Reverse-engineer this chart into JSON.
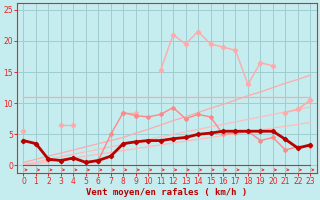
{
  "x": [
    0,
    1,
    2,
    3,
    4,
    5,
    6,
    7,
    8,
    9,
    10,
    11,
    12,
    13,
    14,
    15,
    16,
    17,
    18,
    19,
    20,
    21,
    22,
    23
  ],
  "bg_color": "#c5ecee",
  "grid_color": "#9ecdd2",
  "color_very_light": "#ffbbbb",
  "color_light_pink": "#ffaaaa",
  "color_salmon": "#ff8888",
  "color_red": "#ee2222",
  "color_dark_red": "#bb0000",
  "xlabel": "Vent moyen/en rafales ( km/h )",
  "ylim": [
    -1.2,
    26
  ],
  "xlim": [
    -0.5,
    23.5
  ],
  "yticks": [
    0,
    5,
    10,
    15,
    20,
    25
  ],
  "xticks": [
    0,
    1,
    2,
    3,
    4,
    5,
    6,
    7,
    8,
    9,
    10,
    11,
    12,
    13,
    14,
    15,
    16,
    17,
    18,
    19,
    20,
    21,
    22,
    23
  ],
  "series_horiz": [
    11.0,
    11.0,
    11.0,
    11.0,
    11.0,
    11.0,
    11.0,
    11.0,
    11.0,
    11.0,
    11.0,
    11.0,
    11.0,
    11.0,
    11.0,
    11.0,
    11.0,
    11.0,
    11.0,
    11.0,
    11.0,
    11.0,
    11.0,
    11.0
  ],
  "series_peaked": [
    5.5,
    null,
    null,
    6.5,
    6.5,
    null,
    null,
    null,
    8.5,
    8.5,
    null,
    15.3,
    21.0,
    19.5,
    21.5,
    19.5,
    19.0,
    18.5,
    13.0,
    16.5,
    16.0,
    null,
    9.0,
    10.5
  ],
  "series_peaked_right": [
    null,
    null,
    null,
    null,
    null,
    null,
    null,
    null,
    null,
    null,
    null,
    null,
    null,
    null,
    null,
    null,
    null,
    null,
    null,
    null,
    null,
    8.5,
    9.0,
    10.5
  ],
  "series_trend_upper": [
    0.5,
    1.0,
    1.5,
    2.0,
    2.5,
    3.0,
    3.5,
    4.0,
    4.5,
    5.2,
    5.8,
    6.5,
    7.2,
    7.8,
    8.5,
    9.2,
    9.8,
    10.5,
    11.2,
    11.8,
    12.5,
    13.2,
    13.8,
    14.5
  ],
  "series_trend_lower": [
    0.2,
    0.5,
    1.0,
    1.4,
    1.8,
    2.2,
    2.6,
    3.0,
    3.4,
    3.8,
    4.2,
    4.6,
    5.0,
    5.4,
    5.8,
    6.2,
    6.6,
    7.0,
    7.4,
    7.8,
    8.2,
    8.6,
    9.0,
    9.4
  ],
  "series_trend_lower2": [
    0.1,
    0.3,
    0.6,
    0.9,
    1.2,
    1.5,
    1.8,
    2.1,
    2.4,
    2.7,
    3.0,
    3.3,
    3.6,
    3.9,
    4.2,
    4.5,
    4.8,
    5.1,
    5.4,
    5.7,
    6.0,
    6.3,
    6.6,
    6.9
  ],
  "series_medium": [
    4.0,
    3.5,
    1.0,
    0.8,
    1.2,
    0.5,
    0.8,
    5.0,
    8.5,
    8.0,
    7.8,
    8.2,
    9.3,
    7.5,
    8.2,
    7.8,
    5.0,
    5.2,
    5.5,
    4.0,
    4.5,
    2.5,
    3.0,
    3.2
  ],
  "series_dark": [
    4.0,
    3.5,
    1.0,
    0.8,
    1.2,
    0.5,
    0.8,
    1.5,
    3.5,
    3.8,
    4.0,
    4.0,
    4.3,
    4.5,
    5.0,
    5.2,
    5.5,
    5.5,
    5.5,
    5.5,
    5.5,
    4.2,
    2.8,
    3.3
  ],
  "series_bottom": [
    0.0,
    0.0,
    0.0,
    0.0,
    0.0,
    0.0,
    0.0,
    0.0,
    0.0,
    0.0,
    0.0,
    0.0,
    0.0,
    0.0,
    0.0,
    0.0,
    0.0,
    0.0,
    0.0,
    0.0,
    0.0,
    0.0,
    0.0,
    0.0
  ]
}
